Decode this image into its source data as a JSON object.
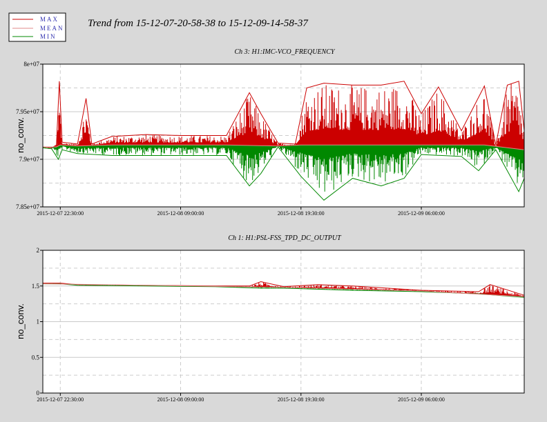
{
  "window_title": "Trend from 15-12-07-20-58-38 to 15-12-09-14-58-37",
  "legend": [
    {
      "name": "MAX",
      "color": "#cc0000"
    },
    {
      "name": "MEAN",
      "color": "#e08888"
    },
    {
      "name": "MIN",
      "color": "#008800"
    }
  ],
  "chart_data": [
    {
      "type": "line",
      "title": "Ch 3: H1:IMC-VCO_FREQUENCY",
      "ylabel": "no_conv.",
      "xlabel": "",
      "x_range": [
        "2015-12-07 20:58:38",
        "2015-12-09 14:58:37"
      ],
      "xticks": [
        {
          "value": "2015-12-07 22:30:00",
          "label": "2015-12-07 22:30:00"
        },
        {
          "value": "2015-12-08 09:00:00",
          "label": "2015-12-08 09:00:00"
        },
        {
          "value": "2015-12-08 19:30:00",
          "label": "2015-12-08 19:30:00"
        },
        {
          "value": "2015-12-09 06:00:00",
          "label": "2015-12-09 06:00:00"
        }
      ],
      "ylim": [
        78500000,
        80000000
      ],
      "yticks": [
        {
          "value": 78500000,
          "label": "7.85e+07"
        },
        {
          "value": 79000000,
          "label": "7.9e+07"
        },
        {
          "value": 79500000,
          "label": "7.95e+07"
        },
        {
          "value": 80000000,
          "label": "8e+07"
        }
      ],
      "grid": true,
      "series": [
        {
          "name": "MAX",
          "color": "#cc0000",
          "points": [
            [
              "2015-12-07 20:58:38",
              79130000
            ],
            [
              "2015-12-07 21:45:00",
              79120000
            ],
            [
              "2015-12-07 22:10:00",
              79150000
            ],
            [
              "2015-12-07 22:25:00",
              79820000
            ],
            [
              "2015-12-07 22:40:00",
              79180000
            ],
            [
              "2015-12-08 00:00:00",
              79160000
            ],
            [
              "2015-12-08 00:45:00",
              79640000
            ],
            [
              "2015-12-08 01:15:00",
              79160000
            ],
            [
              "2015-12-08 03:00:00",
              79240000
            ],
            [
              "2015-12-08 06:00:00",
              79260000
            ],
            [
              "2015-12-08 09:00:00",
              79250000
            ],
            [
              "2015-12-08 13:00:00",
              79250000
            ],
            [
              "2015-12-08 15:00:00",
              79700000
            ],
            [
              "2015-12-08 16:00:00",
              79480000
            ],
            [
              "2015-12-08 17:30:00",
              79170000
            ],
            [
              "2015-12-08 19:00:00",
              79160000
            ],
            [
              "2015-12-08 20:00:00",
              79750000
            ],
            [
              "2015-12-08 21:30:00",
              79800000
            ],
            [
              "2015-12-09 00:00:00",
              79780000
            ],
            [
              "2015-12-09 02:30:00",
              79780000
            ],
            [
              "2015-12-09 04:30:00",
              79820000
            ],
            [
              "2015-12-09 06:00:00",
              79480000
            ],
            [
              "2015-12-09 07:30:00",
              79760000
            ],
            [
              "2015-12-09 09:30:00",
              79300000
            ],
            [
              "2015-12-09 11:30:00",
              79770000
            ],
            [
              "2015-12-09 12:30:00",
              79150000
            ],
            [
              "2015-12-09 13:30:00",
              79780000
            ],
            [
              "2015-12-09 14:30:00",
              79820000
            ],
            [
              "2015-12-09 14:58:37",
              79300000
            ]
          ]
        },
        {
          "name": "MEAN",
          "color": "#e08888",
          "points": [
            [
              "2015-12-07 20:58:38",
              79130000
            ],
            [
              "2015-12-07 22:10:00",
              79130000
            ],
            [
              "2015-12-07 22:30:00",
              79150000
            ],
            [
              "2015-12-08 00:00:00",
              79140000
            ],
            [
              "2015-12-08 03:00:00",
              79150000
            ],
            [
              "2015-12-08 09:00:00",
              79150000
            ],
            [
              "2015-12-08 13:00:00",
              79150000
            ],
            [
              "2015-12-08 17:30:00",
              79140000
            ],
            [
              "2015-12-08 19:30:00",
              79150000
            ],
            [
              "2015-12-09 00:00:00",
              79150000
            ],
            [
              "2015-12-09 06:00:00",
              79150000
            ],
            [
              "2015-12-09 11:30:00",
              79150000
            ],
            [
              "2015-12-09 14:58:37",
              79100000
            ]
          ]
        },
        {
          "name": "MIN",
          "color": "#008800",
          "points": [
            [
              "2015-12-07 20:58:38",
              79120000
            ],
            [
              "2015-12-07 21:45:00",
              79110000
            ],
            [
              "2015-12-07 22:20:00",
              79000000
            ],
            [
              "2015-12-07 22:40:00",
              79100000
            ],
            [
              "2015-12-08 00:00:00",
              79060000
            ],
            [
              "2015-12-08 03:00:00",
              79040000
            ],
            [
              "2015-12-08 09:00:00",
              79040000
            ],
            [
              "2015-12-08 13:00:00",
              79040000
            ],
            [
              "2015-12-08 15:00:00",
              78720000
            ],
            [
              "2015-12-08 16:00:00",
              78850000
            ],
            [
              "2015-12-08 17:30:00",
              79130000
            ],
            [
              "2015-12-08 19:30:00",
              78820000
            ],
            [
              "2015-12-08 21:30:00",
              78570000
            ],
            [
              "2015-12-09 00:00:00",
              78800000
            ],
            [
              "2015-12-09 02:30:00",
              78720000
            ],
            [
              "2015-12-09 04:30:00",
              78800000
            ],
            [
              "2015-12-09 06:00:00",
              79050000
            ],
            [
              "2015-12-09 09:30:00",
              79030000
            ],
            [
              "2015-12-09 11:00:00",
              78880000
            ],
            [
              "2015-12-09 12:30:00",
              79100000
            ],
            [
              "2015-12-09 14:30:00",
              78660000
            ],
            [
              "2015-12-09 14:58:37",
              78800000
            ]
          ]
        }
      ]
    },
    {
      "type": "line",
      "title": "Ch 1: H1:PSL-FSS_TPD_DC_OUTPUT",
      "ylabel": "no_conv.",
      "xlabel": "",
      "x_range": [
        "2015-12-07 20:58:38",
        "2015-12-09 14:58:37"
      ],
      "xticks": [
        {
          "value": "2015-12-07 22:30:00",
          "label": "2015-12-07 22:30:00"
        },
        {
          "value": "2015-12-08 09:00:00",
          "label": "2015-12-08 09:00:00"
        },
        {
          "value": "2015-12-08 19:30:00",
          "label": "2015-12-08 19:30:00"
        },
        {
          "value": "2015-12-09 06:00:00",
          "label": "2015-12-09 06:00:00"
        }
      ],
      "ylim": [
        0,
        2
      ],
      "yticks": [
        {
          "value": 0,
          "label": "0"
        },
        {
          "value": 0.5,
          "label": "0.5"
        },
        {
          "value": 1,
          "label": "1"
        },
        {
          "value": 1.5,
          "label": "1.5"
        },
        {
          "value": 2,
          "label": "2"
        }
      ],
      "grid": true,
      "series": [
        {
          "name": "MAX",
          "color": "#cc0000",
          "points": [
            [
              "2015-12-07 20:58:38",
              1.54
            ],
            [
              "2015-12-07 22:30:00",
              1.54
            ],
            [
              "2015-12-08 00:00:00",
              1.52
            ],
            [
              "2015-12-08 06:00:00",
              1.51
            ],
            [
              "2015-12-08 12:00:00",
              1.5
            ],
            [
              "2015-12-08 15:00:00",
              1.5
            ],
            [
              "2015-12-08 16:00:00",
              1.56
            ],
            [
              "2015-12-08 18:00:00",
              1.49
            ],
            [
              "2015-12-08 21:00:00",
              1.52
            ],
            [
              "2015-12-09 00:00:00",
              1.5
            ],
            [
              "2015-12-09 06:00:00",
              1.44
            ],
            [
              "2015-12-09 11:00:00",
              1.42
            ],
            [
              "2015-12-09 12:00:00",
              1.52
            ],
            [
              "2015-12-09 14:58:37",
              1.37
            ]
          ]
        },
        {
          "name": "MEAN",
          "color": "#e08888",
          "points": [
            [
              "2015-12-07 20:58:38",
              1.53
            ],
            [
              "2015-12-08 06:00:00",
              1.51
            ],
            [
              "2015-12-08 18:00:00",
              1.48
            ],
            [
              "2015-12-09 06:00:00",
              1.43
            ],
            [
              "2015-12-09 14:58:37",
              1.35
            ]
          ]
        },
        {
          "name": "MIN",
          "color": "#008800",
          "points": [
            [
              "2015-12-07 20:58:38",
              1.53
            ],
            [
              "2015-12-07 22:30:00",
              1.53
            ],
            [
              "2015-12-08 00:00:00",
              1.51
            ],
            [
              "2015-12-08 06:00:00",
              1.5
            ],
            [
              "2015-12-08 12:00:00",
              1.49
            ],
            [
              "2015-12-08 16:00:00",
              1.47
            ],
            [
              "2015-12-08 18:00:00",
              1.47
            ],
            [
              "2015-12-09 00:00:00",
              1.44
            ],
            [
              "2015-12-09 06:00:00",
              1.42
            ],
            [
              "2015-12-09 11:00:00",
              1.39
            ],
            [
              "2015-12-09 14:58:37",
              1.34
            ]
          ]
        }
      ]
    }
  ]
}
